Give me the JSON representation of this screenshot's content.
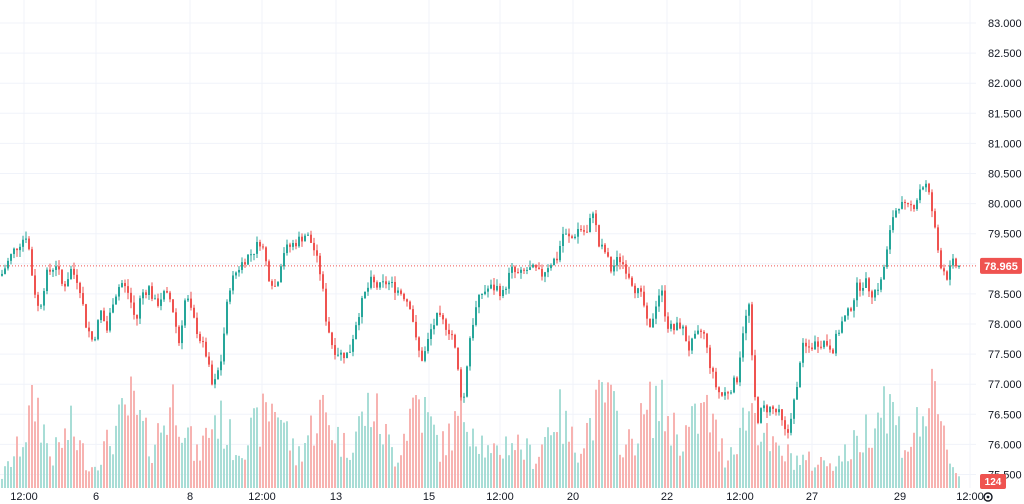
{
  "chart_data": {
    "type": "candlestick",
    "y_ticks": [
      "83.000",
      "82.500",
      "82.000",
      "81.500",
      "81.000",
      "80.500",
      "80.000",
      "79.500",
      "79.000",
      "78.500",
      "78.000",
      "77.500",
      "77.000",
      "76.500",
      "76.000",
      "75.500"
    ],
    "x_ticks": [
      "12:00",
      "6",
      "8",
      "12:00",
      "13",
      "15",
      "12:00",
      "20",
      "22",
      "12:00",
      "27",
      "29",
      "12:00"
    ],
    "ylim": [
      75.4,
      83.1
    ],
    "last_price": "78.965",
    "last_volume": "124",
    "colors": {
      "up": "#26a69a",
      "down": "#ef5350",
      "up_volume": "#a8ddd6",
      "down_volume": "#f7b3b1",
      "grid": "#f0f3fa"
    },
    "grid": true,
    "close_path": [
      [
        0,
        78.8
      ],
      [
        12,
        79.2
      ],
      [
        26,
        79.5
      ],
      [
        32,
        78.7
      ],
      [
        38,
        78.2
      ],
      [
        45,
        78.8
      ],
      [
        55,
        79.0
      ],
      [
        62,
        78.6
      ],
      [
        70,
        78.9
      ],
      [
        78,
        78.7
      ],
      [
        85,
        78.0
      ],
      [
        92,
        77.7
      ],
      [
        100,
        78.2
      ],
      [
        106,
        77.9
      ],
      [
        112,
        78.4
      ],
      [
        120,
        78.7
      ],
      [
        128,
        78.5
      ],
      [
        135,
        78.0
      ],
      [
        140,
        78.5
      ],
      [
        148,
        78.6
      ],
      [
        155,
        78.3
      ],
      [
        162,
        78.5
      ],
      [
        170,
        78.4
      ],
      [
        178,
        77.7
      ],
      [
        185,
        78.5
      ],
      [
        190,
        78.2
      ],
      [
        198,
        77.8
      ],
      [
        205,
        77.5
      ],
      [
        212,
        76.9
      ],
      [
        220,
        77.4
      ],
      [
        228,
        78.6
      ],
      [
        236,
        78.9
      ],
      [
        245,
        79.1
      ],
      [
        252,
        79.2
      ],
      [
        260,
        79.4
      ],
      [
        268,
        78.8
      ],
      [
        275,
        78.6
      ],
      [
        282,
        79.2
      ],
      [
        290,
        79.3
      ],
      [
        298,
        79.4
      ],
      [
        305,
        79.5
      ],
      [
        312,
        79.3
      ],
      [
        320,
        78.8
      ],
      [
        325,
        78.1
      ],
      [
        332,
        77.6
      ],
      [
        340,
        77.5
      ],
      [
        348,
        77.5
      ],
      [
        356,
        78.1
      ],
      [
        364,
        78.5
      ],
      [
        370,
        78.7
      ],
      [
        378,
        78.6
      ],
      [
        386,
        78.7
      ],
      [
        394,
        78.6
      ],
      [
        402,
        78.5
      ],
      [
        410,
        78.3
      ],
      [
        416,
        77.6
      ],
      [
        422,
        77.4
      ],
      [
        430,
        77.9
      ],
      [
        436,
        78.1
      ],
      [
        444,
        78.0
      ],
      [
        452,
        77.8
      ],
      [
        458,
        77.1
      ],
      [
        462,
        76.6
      ],
      [
        468,
        77.7
      ],
      [
        474,
        78.2
      ],
      [
        480,
        78.5
      ],
      [
        488,
        78.6
      ],
      [
        496,
        78.6
      ],
      [
        502,
        78.5
      ],
      [
        510,
        78.9
      ],
      [
        518,
        78.8
      ],
      [
        526,
        78.9
      ],
      [
        534,
        78.9
      ],
      [
        540,
        78.8
      ],
      [
        548,
        79.0
      ],
      [
        556,
        79.1
      ],
      [
        562,
        79.5
      ],
      [
        570,
        79.4
      ],
      [
        578,
        79.6
      ],
      [
        586,
        79.5
      ],
      [
        592,
        79.9
      ],
      [
        598,
        79.3
      ],
      [
        604,
        79.2
      ],
      [
        610,
        78.9
      ],
      [
        618,
        79.1
      ],
      [
        626,
        78.9
      ],
      [
        634,
        78.6
      ],
      [
        642,
        78.4
      ],
      [
        648,
        77.8
      ],
      [
        654,
        78.3
      ],
      [
        660,
        78.6
      ],
      [
        666,
        78.0
      ],
      [
        672,
        77.9
      ],
      [
        680,
        78.0
      ],
      [
        688,
        77.6
      ],
      [
        696,
        77.8
      ],
      [
        702,
        77.9
      ],
      [
        708,
        77.4
      ],
      [
        714,
        77.0
      ],
      [
        720,
        76.8
      ],
      [
        728,
        76.9
      ],
      [
        736,
        77.1
      ],
      [
        742,
        77.9
      ],
      [
        748,
        78.3
      ],
      [
        752,
        77.1
      ],
      [
        756,
        76.4
      ],
      [
        762,
        76.6
      ],
      [
        770,
        76.6
      ],
      [
        778,
        76.5
      ],
      [
        786,
        76.1
      ],
      [
        790,
        76.5
      ],
      [
        796,
        76.9
      ],
      [
        800,
        77.6
      ],
      [
        808,
        77.6
      ],
      [
        816,
        77.7
      ],
      [
        824,
        77.7
      ],
      [
        832,
        77.6
      ],
      [
        840,
        78.0
      ],
      [
        848,
        78.2
      ],
      [
        856,
        78.6
      ],
      [
        864,
        78.7
      ],
      [
        872,
        78.5
      ],
      [
        880,
        78.7
      ],
      [
        886,
        79.2
      ],
      [
        892,
        79.8
      ],
      [
        898,
        80.0
      ],
      [
        906,
        79.9
      ],
      [
        914,
        80.0
      ],
      [
        920,
        80.3
      ],
      [
        926,
        80.3
      ],
      [
        932,
        79.8
      ],
      [
        936,
        79.3
      ],
      [
        940,
        79.0
      ],
      [
        946,
        78.8
      ],
      [
        952,
        79.0
      ],
      [
        958,
        78.95
      ]
    ],
    "volume_path": [
      [
        0,
        10
      ],
      [
        20,
        45
      ],
      [
        35,
        90
      ],
      [
        50,
        30
      ],
      [
        70,
        60
      ],
      [
        90,
        20
      ],
      [
        110,
        50
      ],
      [
        130,
        85
      ],
      [
        150,
        40
      ],
      [
        175,
        95
      ],
      [
        195,
        30
      ],
      [
        215,
        75
      ],
      [
        235,
        40
      ],
      [
        255,
        60
      ],
      [
        275,
        90
      ],
      [
        295,
        30
      ],
      [
        320,
        80
      ],
      [
        345,
        40
      ],
      [
        370,
        85
      ],
      [
        395,
        30
      ],
      [
        415,
        95
      ],
      [
        440,
        40
      ],
      [
        465,
        80
      ],
      [
        490,
        30
      ],
      [
        510,
        50
      ],
      [
        535,
        30
      ],
      [
        555,
        80
      ],
      [
        575,
        40
      ],
      [
        605,
        95
      ],
      [
        625,
        40
      ],
      [
        655,
        90
      ],
      [
        680,
        50
      ],
      [
        705,
        80
      ],
      [
        725,
        30
      ],
      [
        750,
        85
      ],
      [
        770,
        40
      ],
      [
        795,
        30
      ],
      [
        815,
        25
      ],
      [
        840,
        30
      ],
      [
        860,
        50
      ],
      [
        885,
        95
      ],
      [
        905,
        40
      ],
      [
        930,
        90
      ],
      [
        955,
        15
      ]
    ]
  }
}
